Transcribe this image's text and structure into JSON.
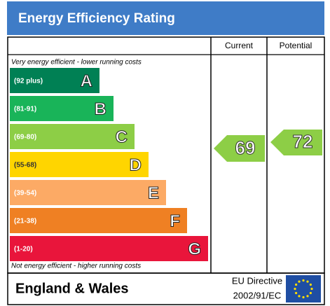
{
  "header": {
    "title": "Energy Efficiency Rating"
  },
  "columns": {
    "current": "Current",
    "potential": "Potential"
  },
  "top_note": "Very energy efficient - lower running costs",
  "bottom_note": "Not energy efficient - higher running costs",
  "bands": [
    {
      "range": "(92 plus)",
      "letter": "A",
      "color": "#008054"
    },
    {
      "range": "(81-91)",
      "letter": "B",
      "color": "#19b459"
    },
    {
      "range": "(69-80)",
      "letter": "C",
      "color": "#8dce46"
    },
    {
      "range": "(55-68)",
      "letter": "D",
      "color": "#ffd500"
    },
    {
      "range": "(39-54)",
      "letter": "E",
      "color": "#fcaa65"
    },
    {
      "range": "(21-38)",
      "letter": "F",
      "color": "#ef8023"
    },
    {
      "range": "(1-20)",
      "letter": "G",
      "color": "#e9153b"
    }
  ],
  "current": "69",
  "potential": "72",
  "footer": {
    "region": "England & Wales",
    "directive_line1": "EU Directive",
    "directive_line2": "2002/91/EC"
  }
}
